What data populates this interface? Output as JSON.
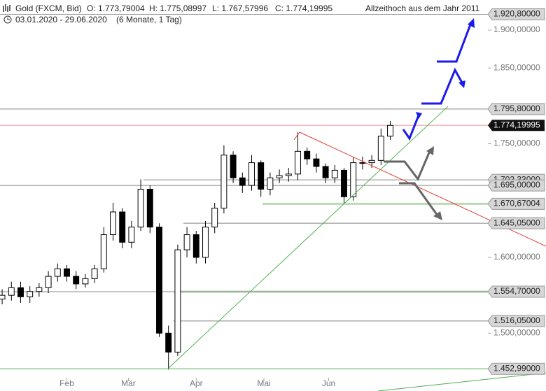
{
  "chart_data": {
    "type": "candlestick",
    "title": "Gold (FXCM, Bid)",
    "ohlc_labels": [
      "O: 1.773,79004",
      "H: 1.775,08997",
      "L: 1.767,57996",
      "C: 1.774,19995"
    ],
    "date_range": "03.01.2020 - 29.06.2020",
    "period": "(6 Monate, 1 Tag)",
    "annotation": "Allzeithoch aus dem Jahr 2011",
    "color": "#000000",
    "x": [
      0,
      3,
      6,
      9,
      12,
      15,
      18,
      21,
      24,
      27,
      30,
      33,
      36,
      39,
      42,
      45,
      48,
      51,
      54,
      57,
      60,
      63,
      66,
      69,
      72,
      75,
      78,
      81,
      84,
      87,
      90,
      93,
      96,
      99,
      102,
      105,
      108,
      111,
      114,
      117,
      120,
      123,
      126
    ],
    "open": [
      1545,
      1550,
      1560,
      1548,
      1555,
      1560,
      1575,
      1585,
      1575,
      1565,
      1572,
      1585,
      1630,
      1660,
      1620,
      1640,
      1690,
      1640,
      1500,
      1475,
      1610,
      1630,
      1600,
      1640,
      1665,
      1735,
      1705,
      1695,
      1725,
      1690,
      1705,
      1708,
      1710,
      1740,
      1730,
      1720,
      1705,
      1715,
      1680,
      1725,
      1725,
      1728,
      1760
    ],
    "high": [
      1558,
      1568,
      1568,
      1562,
      1566,
      1582,
      1592,
      1590,
      1582,
      1578,
      1590,
      1640,
      1672,
      1665,
      1648,
      1703,
      1695,
      1645,
      1510,
      1617,
      1640,
      1635,
      1648,
      1672,
      1748,
      1740,
      1712,
      1735,
      1728,
      1712,
      1716,
      1718,
      1765,
      1745,
      1737,
      1724,
      1722,
      1718,
      1732,
      1733,
      1735,
      1770,
      1780
    ],
    "low": [
      1538,
      1543,
      1540,
      1540,
      1548,
      1553,
      1568,
      1568,
      1558,
      1560,
      1566,
      1580,
      1622,
      1612,
      1612,
      1635,
      1632,
      1495,
      1452,
      1470,
      1600,
      1592,
      1592,
      1632,
      1658,
      1698,
      1685,
      1688,
      1680,
      1682,
      1698,
      1700,
      1702,
      1722,
      1712,
      1698,
      1698,
      1672,
      1675,
      1716,
      1718,
      1722,
      1755
    ],
    "close": [
      1550,
      1560,
      1548,
      1555,
      1560,
      1575,
      1585,
      1575,
      1565,
      1572,
      1585,
      1630,
      1660,
      1620,
      1640,
      1690,
      1640,
      1500,
      1475,
      1610,
      1630,
      1600,
      1640,
      1665,
      1735,
      1705,
      1695,
      1725,
      1690,
      1705,
      1708,
      1710,
      1740,
      1730,
      1720,
      1705,
      1715,
      1680,
      1725,
      1725,
      1728,
      1760,
      1774.2
    ],
    "xlim": [
      -0.7,
      157.7
    ],
    "xticks": [
      {
        "value": 21,
        "label": "Feb"
      },
      {
        "value": 41,
        "label": "Mär"
      },
      {
        "value": 63,
        "label": "Apr"
      },
      {
        "value": 85,
        "label": "Mai"
      },
      {
        "value": 106,
        "label": "Jun"
      }
    ],
    "ylim": [
      1441.2,
      1939.7
    ],
    "yticks": [
      {
        "value": 1900,
        "label": "1.900,00000"
      },
      {
        "value": 1850,
        "label": "1.850,00000"
      },
      {
        "value": 1750,
        "label": "1.750,00000"
      },
      {
        "value": 1600,
        "label": "1.600,00000"
      },
      {
        "value": 1500,
        "label": "1.500,00000"
      }
    ],
    "levels": [
      {
        "value": 1920.8,
        "label": "1.920,80000",
        "color": "#999999"
      },
      {
        "value": 1795.8,
        "label": "1.795,80000",
        "color": "#888888"
      },
      {
        "value": 1702.33,
        "label": "1.702,33000",
        "color": "#888888"
      },
      {
        "value": 1695.0,
        "label": "1.695,00000",
        "color": "#888888"
      },
      {
        "value": 1670.67004,
        "label": "1.670,67004",
        "color": "#b9dcb4"
      },
      {
        "value": 1645.05,
        "label": "1.645,05000",
        "color": "#888888"
      },
      {
        "value": 1554.7,
        "label": "1.554,70000",
        "color": "#b9dcb4"
      },
      {
        "value": 1516.05,
        "label": "1.516,05000",
        "color": "#888888"
      },
      {
        "value": 1452.99,
        "label": "1.452,99000",
        "color": "#4caf50"
      }
    ],
    "last": {
      "value": 1774.19995,
      "label": "1.774,19995",
      "color": "#f4b8b8"
    }
  }
}
